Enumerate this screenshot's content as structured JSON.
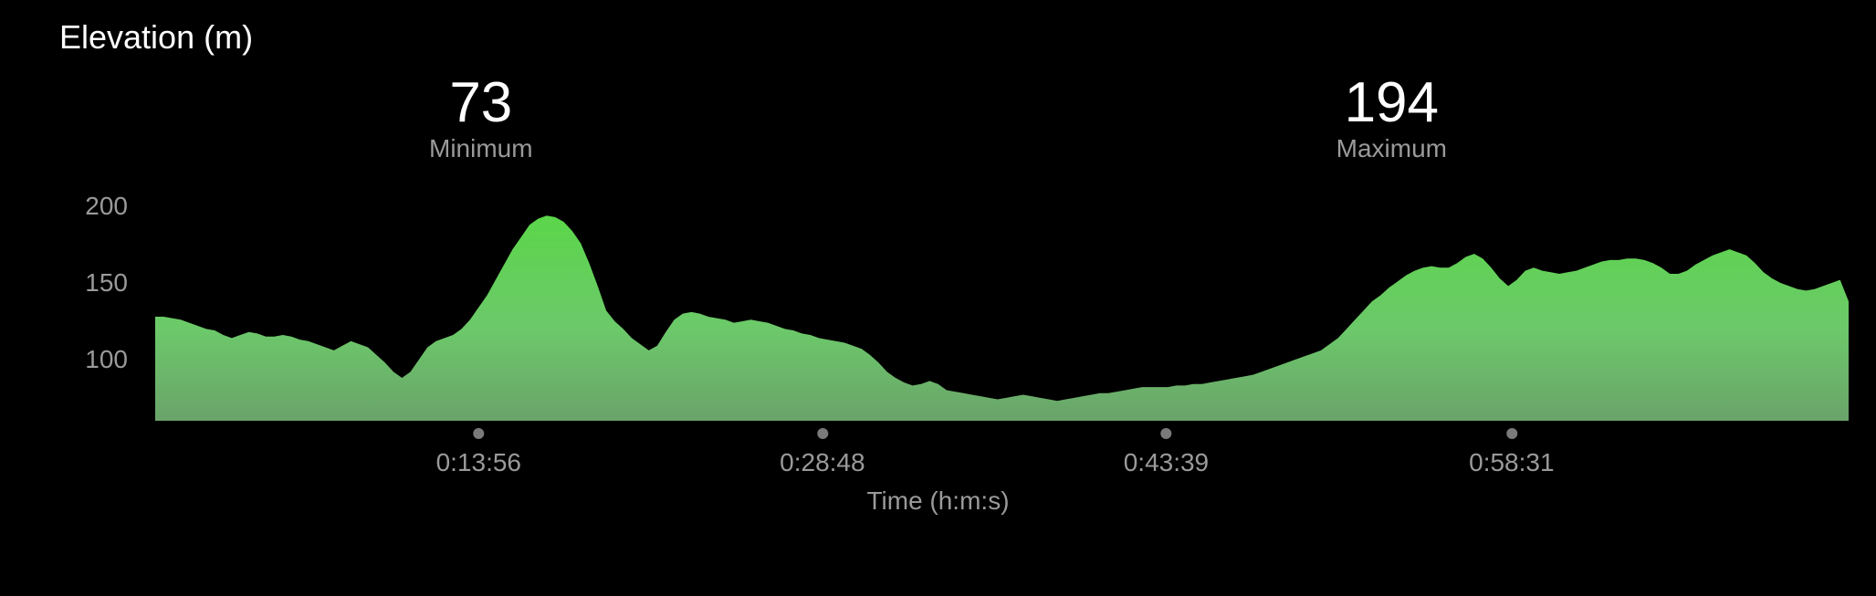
{
  "title": "Elevation (m)",
  "stats": {
    "min": {
      "value": "73",
      "label": "Minimum"
    },
    "max": {
      "value": "194",
      "label": "Maximum"
    }
  },
  "chart": {
    "type": "area",
    "background_color": "#000000",
    "text_color_primary": "#ffffff",
    "text_color_muted": "#9a9a9a",
    "gradient_top": "#5bd64a",
    "gradient_mid": "#6cc96a",
    "gradient_bottom": "#6aa36a",
    "y": {
      "min": 60,
      "max": 215,
      "ticks": [
        100,
        150,
        200
      ],
      "label_fontsize": 28
    },
    "x": {
      "title": "Time (h:m:s)",
      "ticks": [
        {
          "pos": 0.191,
          "label": "0:13:56"
        },
        {
          "pos": 0.394,
          "label": "0:28:48"
        },
        {
          "pos": 0.597,
          "label": "0:43:39"
        },
        {
          "pos": 0.801,
          "label": "0:58:31"
        }
      ],
      "tick_dot_color": "#7a7a7a",
      "label_fontsize": 28
    },
    "series": {
      "values": [
        128,
        128,
        127,
        126,
        124,
        122,
        120,
        119,
        116,
        114,
        116,
        118,
        117,
        115,
        115,
        116,
        115,
        113,
        112,
        110,
        108,
        106,
        109,
        112,
        110,
        108,
        103,
        98,
        92,
        88,
        92,
        100,
        108,
        112,
        114,
        116,
        120,
        126,
        134,
        142,
        152,
        162,
        172,
        180,
        188,
        192,
        194,
        193,
        190,
        184,
        176,
        163,
        148,
        132,
        125,
        120,
        114,
        110,
        106,
        109,
        118,
        126,
        130,
        131,
        130,
        128,
        127,
        126,
        124,
        125,
        126,
        125,
        124,
        122,
        120,
        119,
        117,
        116,
        114,
        113,
        112,
        111,
        109,
        107,
        103,
        98,
        92,
        88,
        85,
        83,
        84,
        86,
        84,
        80,
        79,
        78,
        77,
        76,
        75,
        74,
        75,
        76,
        77,
        76,
        75,
        74,
        73,
        74,
        75,
        76,
        77,
        78,
        78,
        79,
        80,
        81,
        82,
        82,
        82,
        82,
        83,
        83,
        84,
        84,
        85,
        86,
        87,
        88,
        89,
        90,
        92,
        94,
        96,
        98,
        100,
        102,
        104,
        106,
        110,
        114,
        120,
        126,
        132,
        138,
        142,
        147,
        151,
        155,
        158,
        160,
        161,
        160,
        160,
        163,
        167,
        169,
        166,
        160,
        153,
        148,
        152,
        158,
        160,
        158,
        157,
        156,
        157,
        158,
        160,
        162,
        164,
        165,
        165,
        166,
        166,
        165,
        163,
        160,
        156,
        156,
        158,
        162,
        165,
        168,
        170,
        172,
        170,
        168,
        163,
        157,
        153,
        150,
        148,
        146,
        145,
        146,
        148,
        150,
        152,
        138
      ]
    }
  }
}
